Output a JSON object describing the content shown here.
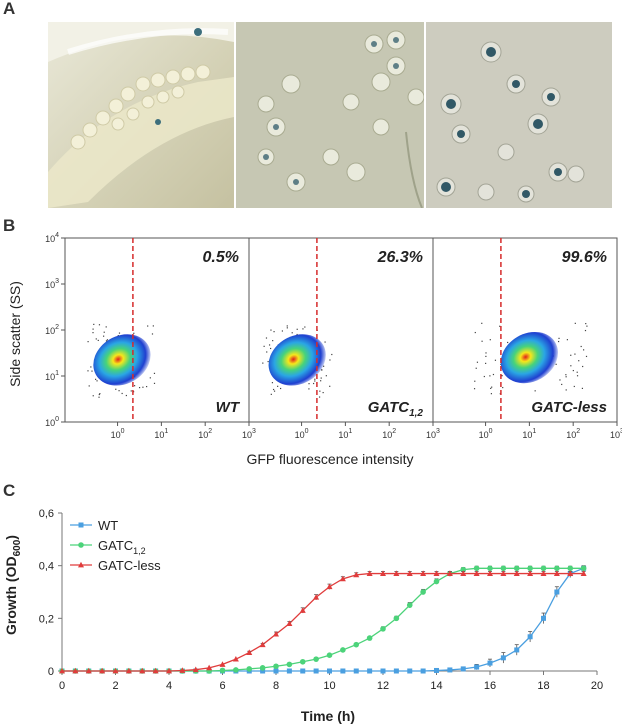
{
  "figure": {
    "panel_labels": [
      "A",
      "B",
      "C"
    ]
  },
  "panel_b": {
    "ylabel": "Side scatter (SS)",
    "xlabel": "GFP fluorescence intensity",
    "y_ticks": [
      {
        "base": "10",
        "exp": "0"
      },
      {
        "base": "10",
        "exp": "1"
      },
      {
        "base": "10",
        "exp": "2"
      },
      {
        "base": "10",
        "exp": "3"
      },
      {
        "base": "10",
        "exp": "4"
      }
    ],
    "x_ticks": [
      {
        "base": "10",
        "exp": "0"
      },
      {
        "base": "10",
        "exp": "1"
      },
      {
        "base": "10",
        "exp": "2"
      },
      {
        "base": "10",
        "exp": "3"
      }
    ],
    "gate_log10_x": 0.35,
    "plots": [
      {
        "pct": "0.5%",
        "label": "WT",
        "sub": "",
        "label_tail": "",
        "cloud_log10_center": [
          0.1,
          1.35
        ]
      },
      {
        "pct": "26.3%",
        "label": "GATC",
        "sub": "1,2",
        "label_tail": "",
        "cloud_log10_center": [
          -0.1,
          1.35
        ]
      },
      {
        "pct": "99.6%",
        "label": "GATC-less",
        "sub": "",
        "label_tail": "",
        "cloud_log10_center": [
          1.0,
          1.4
        ]
      }
    ]
  },
  "chart_data": {
    "type": "line",
    "title": "",
    "xlabel": "Time (h)",
    "ylabel_main": "Growth (OD",
    "ylabel_sub": "600",
    "ylabel_tail": ")",
    "xlim": [
      0,
      20
    ],
    "ylim": [
      0,
      0.6
    ],
    "x_ticks": [
      "0",
      "2",
      "4",
      "6",
      "8",
      "10",
      "12",
      "14",
      "16",
      "18",
      "20"
    ],
    "y_ticks": [
      "0",
      "0,2",
      "0,4",
      "0,6"
    ],
    "x": [
      0,
      0.5,
      1,
      1.5,
      2,
      2.5,
      3,
      3.5,
      4,
      4.5,
      5,
      5.5,
      6,
      6.5,
      7,
      7.5,
      8,
      8.5,
      9,
      9.5,
      10,
      10.5,
      11,
      11.5,
      12,
      12.5,
      13,
      13.5,
      14,
      14.5,
      15,
      15.5,
      16,
      16.5,
      17,
      17.5,
      18,
      18.5,
      19,
      19.5
    ],
    "series": [
      {
        "name": "WT",
        "sub": "",
        "color": "#4a9fe0",
        "marker": "square",
        "values": [
          0,
          0,
          0,
          0,
          0,
          0,
          0,
          0,
          0,
          0,
          0,
          0,
          0,
          0,
          0,
          0,
          0,
          0,
          0,
          0,
          0,
          0,
          0,
          0,
          0,
          0,
          0,
          0,
          0.002,
          0.004,
          0.008,
          0.015,
          0.03,
          0.05,
          0.08,
          0.13,
          0.2,
          0.3,
          0.37,
          0.39
        ],
        "errors": [
          0,
          0,
          0,
          0,
          0,
          0,
          0,
          0,
          0,
          0,
          0,
          0,
          0,
          0,
          0,
          0,
          0,
          0,
          0,
          0,
          0,
          0,
          0,
          0,
          0,
          0,
          0,
          0,
          0,
          0.005,
          0.005,
          0.01,
          0.015,
          0.02,
          0.02,
          0.02,
          0.02,
          0.02,
          0.015,
          0.01
        ]
      },
      {
        "name": "GATC",
        "sub": "1,2",
        "color": "#4cd37a",
        "marker": "circle",
        "values": [
          0,
          0,
          0,
          0,
          0,
          0,
          0,
          0,
          0,
          0,
          0,
          0,
          0.002,
          0.004,
          0.008,
          0.012,
          0.018,
          0.025,
          0.035,
          0.045,
          0.06,
          0.08,
          0.1,
          0.125,
          0.16,
          0.2,
          0.25,
          0.3,
          0.34,
          0.37,
          0.385,
          0.39,
          0.39,
          0.39,
          0.39,
          0.39,
          0.39,
          0.39,
          0.39,
          0.39
        ],
        "errors": [
          0,
          0,
          0,
          0,
          0,
          0,
          0,
          0,
          0,
          0,
          0,
          0,
          0,
          0,
          0,
          0,
          0,
          0,
          0,
          0,
          0,
          0,
          0.005,
          0.005,
          0.008,
          0.008,
          0.01,
          0.01,
          0.01,
          0.008,
          0.008,
          0.008,
          0.008,
          0.008,
          0.008,
          0.008,
          0.008,
          0.008,
          0.008,
          0.008
        ]
      },
      {
        "name": "GATC-less",
        "sub": "",
        "color": "#e03c3c",
        "marker": "triangle",
        "values": [
          0,
          0,
          0,
          0,
          0,
          0,
          0,
          0,
          0,
          0.002,
          0.005,
          0.012,
          0.025,
          0.045,
          0.07,
          0.1,
          0.14,
          0.18,
          0.23,
          0.28,
          0.32,
          0.35,
          0.365,
          0.37,
          0.37,
          0.37,
          0.37,
          0.37,
          0.37,
          0.37,
          0.37,
          0.37,
          0.37,
          0.37,
          0.37,
          0.37,
          0.37,
          0.37,
          0.37,
          0.37
        ],
        "errors": [
          0,
          0,
          0,
          0,
          0,
          0,
          0,
          0,
          0,
          0,
          0,
          0,
          0,
          0,
          0.005,
          0.005,
          0.008,
          0.008,
          0.01,
          0.01,
          0.01,
          0.008,
          0.008,
          0.008,
          0.008,
          0.008,
          0.008,
          0.008,
          0.008,
          0.008,
          0.008,
          0.008,
          0.008,
          0.008,
          0.008,
          0.008,
          0.008,
          0.008,
          0.008,
          0.008
        ]
      }
    ],
    "legend_position": "top-left"
  }
}
